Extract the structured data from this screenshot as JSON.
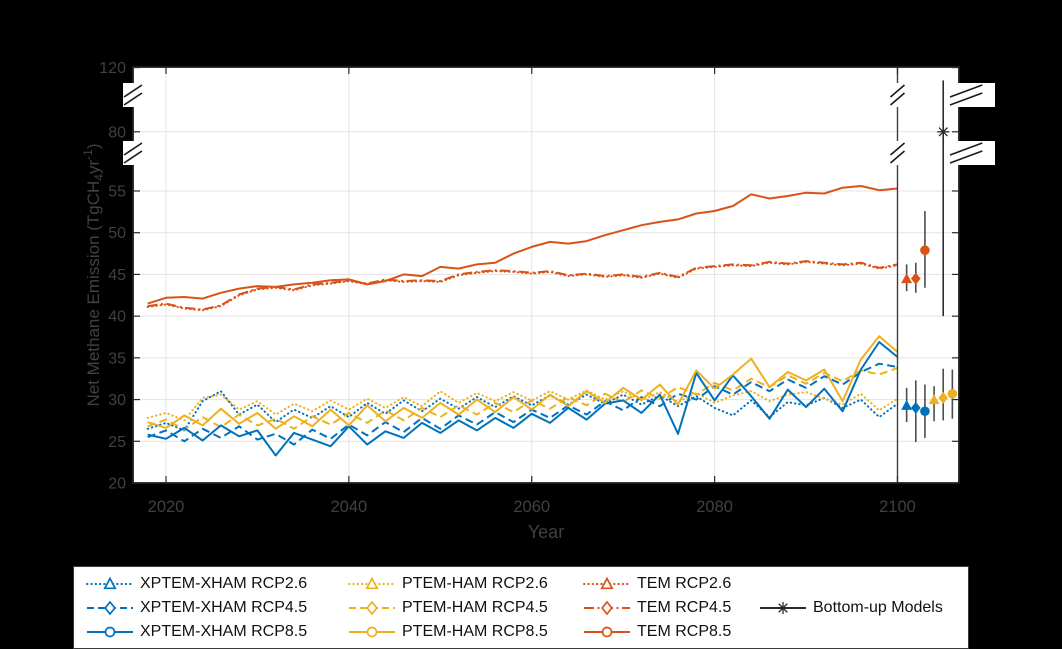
{
  "figure": {
    "background": "#000000",
    "plot_background": "#ffffff"
  },
  "axes": {
    "xlabel": "Year",
    "ylabel": "Net Methane Emission (TgCH₄yr⁻¹)",
    "ylabel_parts": {
      "pre": "Net Methane Emission (TgCH",
      "sub": "4",
      "mid": "yr",
      "sup": "-1",
      "post": ")"
    },
    "xticks": [
      2020,
      2040,
      2060,
      2080,
      2100
    ],
    "yticks_lower": [
      20,
      25,
      30,
      35,
      40,
      45,
      50,
      55
    ],
    "yticks_upper": [
      80,
      120
    ],
    "grid_x_values": [
      2020,
      2040,
      2060,
      2080
    ],
    "grid_y_values": [
      25,
      30,
      35,
      40,
      45,
      50,
      55,
      80
    ],
    "xlim": [
      2016.4,
      2106.7
    ],
    "broken_y_axis_breaks": [
      [
        57,
        78
      ],
      [
        82,
        118
      ]
    ],
    "divider_year": 2100,
    "tick_label_color": "#414141",
    "axis_label_color": "#414141",
    "grid_color": "#e3e3e3",
    "spine_color": "#1f1f1f",
    "divider_color": "#3d3d3d",
    "errorbar_line_color": "#4d4d4d"
  },
  "chart_data": {
    "type": "line",
    "title": "",
    "xlabel": "Year",
    "ylabel": "Net Methane Emission (TgCH4 yr-1)",
    "x": [
      2018,
      2020,
      2022,
      2024,
      2026,
      2028,
      2030,
      2032,
      2034,
      2036,
      2038,
      2040,
      2042,
      2044,
      2046,
      2048,
      2050,
      2052,
      2054,
      2056,
      2058,
      2060,
      2062,
      2064,
      2066,
      2068,
      2070,
      2072,
      2074,
      2076,
      2078,
      2080,
      2082,
      2084,
      2086,
      2088,
      2090,
      2092,
      2094,
      2096,
      2098,
      2100
    ],
    "series": [
      {
        "name": "TEM RCP2.6",
        "color": "#D95319",
        "style": "dotted",
        "marker": "triangle",
        "values": [
          41.1,
          41.4,
          40.9,
          40.7,
          41.2,
          42.5,
          43.2,
          43.4,
          43.1,
          43.7,
          43.9,
          44.2,
          43.8,
          44.3,
          44.1,
          44.2,
          44.1,
          44.9,
          45.2,
          45.4,
          45.3,
          45.1,
          45.3,
          44.8,
          45.0,
          44.7,
          44.9,
          44.6,
          45.1,
          44.6,
          45.7,
          45.9,
          46.1,
          46.0,
          46.4,
          46.2,
          46.5,
          46.3,
          46.1,
          46.3,
          45.7,
          46.1
        ]
      },
      {
        "name": "XPTEM-XHAM RCP2.6",
        "color": "#0072BD",
        "style": "dotted",
        "marker": "triangle",
        "values": [
          26.5,
          27.2,
          26.3,
          29.8,
          31.0,
          28.2,
          29.4,
          27.3,
          28.8,
          27.8,
          29.2,
          27.9,
          29.6,
          28.3,
          29.9,
          28.6,
          30.1,
          28.9,
          30.3,
          29.1,
          30.4,
          29.3,
          30.5,
          29.4,
          30.6,
          29.5,
          30.6,
          29.4,
          30.5,
          29.2,
          30.4,
          29.0,
          28.1,
          29.9,
          27.9,
          29.7,
          29.3,
          30.2,
          29.0,
          30.0,
          27.9,
          29.5
        ]
      },
      {
        "name": "PTEM-HAM RCP2.6",
        "color": "#EDB120",
        "style": "dotted",
        "marker": "triangle",
        "values": [
          27.8,
          28.4,
          27.5,
          30.2,
          30.6,
          28.8,
          29.8,
          28.2,
          29.5,
          28.6,
          29.9,
          28.8,
          30.1,
          29.0,
          30.3,
          29.2,
          31.0,
          29.6,
          30.8,
          29.8,
          30.9,
          29.9,
          31.0,
          30.0,
          31.1,
          30.0,
          31.0,
          29.9,
          30.9,
          29.7,
          30.8,
          29.6,
          30.5,
          31.0,
          29.8,
          30.6,
          30.9,
          30.1,
          29.4,
          30.7,
          28.7,
          30.1
        ]
      },
      {
        "name": "XPTEM-XHAM RCP4.5",
        "color": "#0072BD",
        "style": "dashed",
        "marker": "diamond",
        "values": [
          25.5,
          26.3,
          25.0,
          26.5,
          25.4,
          26.8,
          25.2,
          25.9,
          24.6,
          26.4,
          25.3,
          27.0,
          25.7,
          27.3,
          26.1,
          27.8,
          26.5,
          28.1,
          27.0,
          28.5,
          27.3,
          28.8,
          27.8,
          29.3,
          28.2,
          29.8,
          28.7,
          30.3,
          29.2,
          30.7,
          30.0,
          31.6,
          30.6,
          32.1,
          31.0,
          32.4,
          31.4,
          32.8,
          31.8,
          33.3,
          34.3,
          33.9
        ]
      },
      {
        "name": "PTEM-HAM RCP4.5",
        "color": "#EDB120",
        "style": "dashed",
        "marker": "diamond",
        "values": [
          26.8,
          27.6,
          26.4,
          27.9,
          26.7,
          28.2,
          26.9,
          27.7,
          26.5,
          28.0,
          27.0,
          28.4,
          27.2,
          28.7,
          27.5,
          29.0,
          27.9,
          29.3,
          28.2,
          29.6,
          28.5,
          29.9,
          28.9,
          30.3,
          29.3,
          30.7,
          29.7,
          31.1,
          30.1,
          31.5,
          30.6,
          32.0,
          31.1,
          32.5,
          31.5,
          32.9,
          31.9,
          33.2,
          32.2,
          33.5,
          33.0,
          33.8
        ]
      },
      {
        "name": "XPTEM-XHAM RCP8.5",
        "color": "#0072BD",
        "style": "solid",
        "marker": "circle",
        "values": [
          25.8,
          25.3,
          26.6,
          25.1,
          26.9,
          25.6,
          26.3,
          23.3,
          26.0,
          25.2,
          24.4,
          26.8,
          24.6,
          26.2,
          25.4,
          27.2,
          26.0,
          27.5,
          26.3,
          27.8,
          26.6,
          28.3,
          27.2,
          29.0,
          27.6,
          29.5,
          29.9,
          28.4,
          30.6,
          25.9,
          33.2,
          29.9,
          32.9,
          30.4,
          27.7,
          31.2,
          29.1,
          31.3,
          28.6,
          33.6,
          36.9,
          35.1
        ]
      },
      {
        "name": "PTEM-HAM RCP8.5",
        "color": "#EDB120",
        "style": "solid",
        "marker": "circle",
        "values": [
          27.3,
          26.6,
          28.1,
          26.9,
          28.9,
          27.1,
          28.4,
          26.5,
          28.0,
          26.8,
          28.8,
          26.9,
          29.3,
          27.4,
          29.0,
          27.8,
          29.6,
          28.2,
          30.0,
          28.5,
          30.3,
          28.8,
          30.6,
          29.2,
          31.0,
          29.6,
          31.4,
          30.0,
          31.8,
          29.4,
          33.5,
          31.3,
          33.0,
          34.9,
          31.5,
          33.3,
          32.3,
          33.6,
          29.8,
          34.8,
          37.6,
          35.7
        ]
      },
      {
        "name": "TEM RCP4.5",
        "color": "#D95319",
        "style": "dashdot",
        "marker": "diamond",
        "values": [
          41.2,
          41.5,
          41.0,
          40.8,
          41.3,
          42.6,
          43.3,
          43.5,
          43.2,
          43.8,
          44.0,
          44.3,
          43.9,
          44.4,
          44.2,
          44.3,
          44.2,
          45.0,
          45.3,
          45.5,
          45.4,
          45.2,
          45.4,
          44.9,
          45.1,
          44.8,
          45.0,
          44.7,
          45.2,
          44.7,
          45.8,
          46.0,
          46.2,
          46.1,
          46.5,
          46.3,
          46.6,
          46.4,
          46.2,
          46.4,
          45.8,
          46.2
        ]
      },
      {
        "name": "TEM RCP8.5",
        "color": "#D95319",
        "style": "solid",
        "marker": "circle",
        "values": [
          41.5,
          42.2,
          42.3,
          42.1,
          42.8,
          43.3,
          43.6,
          43.5,
          43.8,
          44.0,
          44.3,
          44.4,
          43.8,
          44.2,
          45.0,
          44.8,
          45.9,
          45.7,
          46.2,
          46.4,
          47.5,
          48.3,
          48.9,
          48.7,
          49.0,
          49.7,
          50.3,
          50.9,
          51.3,
          51.6,
          52.3,
          52.6,
          53.2,
          54.6,
          54.1,
          54.4,
          54.8,
          54.7,
          55.4,
          55.6,
          55.1,
          55.3
        ]
      }
    ],
    "errorbars": [
      {
        "name": "XPTEM-XHAM RCP2.6",
        "x": 2101,
        "mean": 29.3,
        "lo": 27.3,
        "hi": 31.4,
        "color": "#0072BD",
        "marker": "triangle"
      },
      {
        "name": "XPTEM-XHAM RCP4.5",
        "x": 2102,
        "mean": 29.0,
        "lo": 24.9,
        "hi": 32.3,
        "color": "#0072BD",
        "marker": "diamond"
      },
      {
        "name": "XPTEM-XHAM RCP8.5",
        "x": 2103,
        "mean": 28.6,
        "lo": 25.4,
        "hi": 31.8,
        "color": "#0072BD",
        "marker": "circle"
      },
      {
        "name": "PTEM-HAM RCP2.6",
        "x": 2104,
        "mean": 30.0,
        "lo": 27.4,
        "hi": 31.6,
        "color": "#EDB120",
        "marker": "triangle"
      },
      {
        "name": "PTEM-HAM RCP4.5",
        "x": 2105,
        "mean": 30.2,
        "lo": 27.5,
        "hi": 33.7,
        "color": "#EDB120",
        "marker": "diamond"
      },
      {
        "name": "PTEM-HAM RCP8.5",
        "x": 2106,
        "mean": 30.7,
        "lo": 27.7,
        "hi": 33.6,
        "color": "#EDB120",
        "marker": "circle"
      },
      {
        "name": "TEM RCP2.6",
        "x": 2101,
        "mean": 44.5,
        "lo": 43.0,
        "hi": 46.2,
        "color": "#D95319",
        "marker": "triangle"
      },
      {
        "name": "TEM RCP4.5",
        "x": 2102,
        "mean": 44.5,
        "lo": 42.8,
        "hi": 46.4,
        "color": "#D95319",
        "marker": "diamond"
      },
      {
        "name": "TEM RCP8.5",
        "x": 2103,
        "mean": 47.9,
        "lo": 43.4,
        "hi": 52.6,
        "color": "#D95319",
        "marker": "circle"
      },
      {
        "name": "Bottom-up Models",
        "x": 2105,
        "mean": 80.0,
        "lo": 40.0,
        "hi": 112.0,
        "color": "#2b2b2b",
        "marker": "asterisk"
      }
    ]
  },
  "legend": {
    "background": "#ffffff",
    "border_color": "#3a3a3a",
    "entries": [
      {
        "label": "XPTEM-XHAM RCP2.6",
        "color": "#0072BD",
        "style": "dotted",
        "marker": "triangle",
        "row": 0,
        "col": 0
      },
      {
        "label": "XPTEM-XHAM RCP4.5",
        "color": "#0072BD",
        "style": "dashed",
        "marker": "diamond",
        "row": 1,
        "col": 0
      },
      {
        "label": "XPTEM-XHAM RCP8.5",
        "color": "#0072BD",
        "style": "solid",
        "marker": "circle",
        "row": 2,
        "col": 0
      },
      {
        "label": "PTEM-HAM RCP2.6",
        "color": "#EDB120",
        "style": "dotted",
        "marker": "triangle",
        "row": 0,
        "col": 1
      },
      {
        "label": "PTEM-HAM RCP4.5",
        "color": "#EDB120",
        "style": "dashed",
        "marker": "diamond",
        "row": 1,
        "col": 1
      },
      {
        "label": "PTEM-HAM RCP8.5",
        "color": "#EDB120",
        "style": "solid",
        "marker": "circle",
        "row": 2,
        "col": 1
      },
      {
        "label": "TEM RCP2.6",
        "color": "#D95319",
        "style": "dotted",
        "marker": "triangle",
        "row": 0,
        "col": 2
      },
      {
        "label": "TEM RCP4.5",
        "color": "#D95319",
        "style": "dashdot",
        "marker": "diamond",
        "row": 1,
        "col": 2
      },
      {
        "label": "TEM RCP8.5",
        "color": "#D95319",
        "style": "solid",
        "marker": "circle",
        "row": 2,
        "col": 2
      },
      {
        "label": "Bottom-up Models",
        "color": "#2b2b2b",
        "style": "solid",
        "marker": "asterisk",
        "row": 1,
        "col": 3
      }
    ]
  }
}
